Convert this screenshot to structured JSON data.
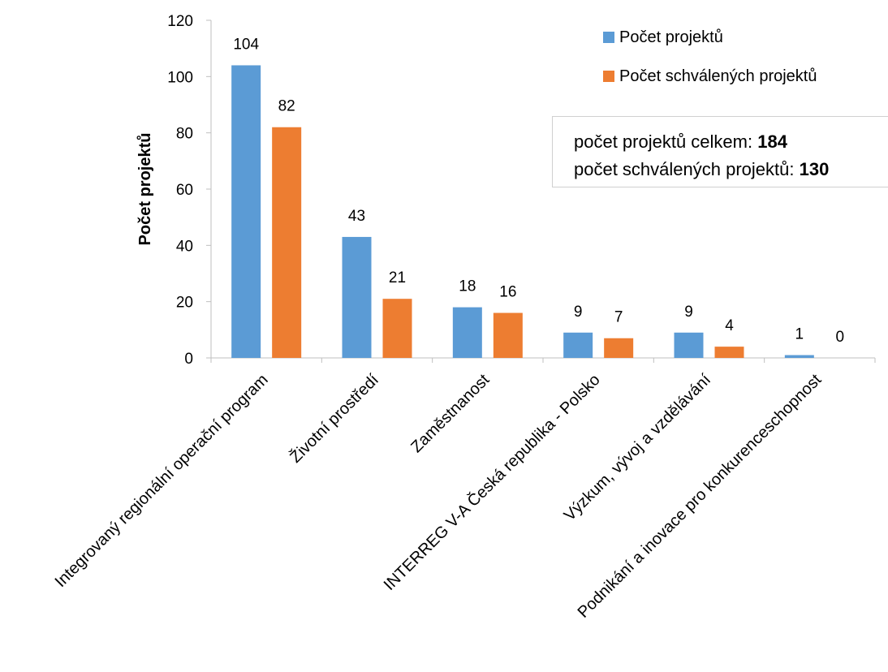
{
  "chart_data": {
    "type": "bar",
    "categories": [
      "Integrovaný regionální operační program",
      "Životní prostředí",
      "Zaměstnanost",
      "INTERREG V-A Česká republika - Polsko",
      "Výzkum, vývoj a vzdělávání",
      "Podnikání a inovace pro konkurenceschopnost"
    ],
    "series": [
      {
        "name": "Počet projektů",
        "values": [
          104,
          43,
          18,
          9,
          9,
          1
        ],
        "color": "#5b9bd5"
      },
      {
        "name": "Počet schválených projektů",
        "values": [
          82,
          21,
          16,
          7,
          4,
          0
        ],
        "color": "#ed7d31"
      }
    ],
    "ylabel": "Počet projektů",
    "xlabel": "",
    "ylim": [
      0,
      120
    ],
    "yticks": [
      0,
      20,
      40,
      60,
      80,
      100,
      120
    ],
    "grid": false,
    "legend": "top-right",
    "data_labels": true
  },
  "summary": {
    "line1_label": "počet projektů celkem: ",
    "line1_value": "184",
    "line2_label": "počet schválených projektů: ",
    "line2_value": "130"
  }
}
